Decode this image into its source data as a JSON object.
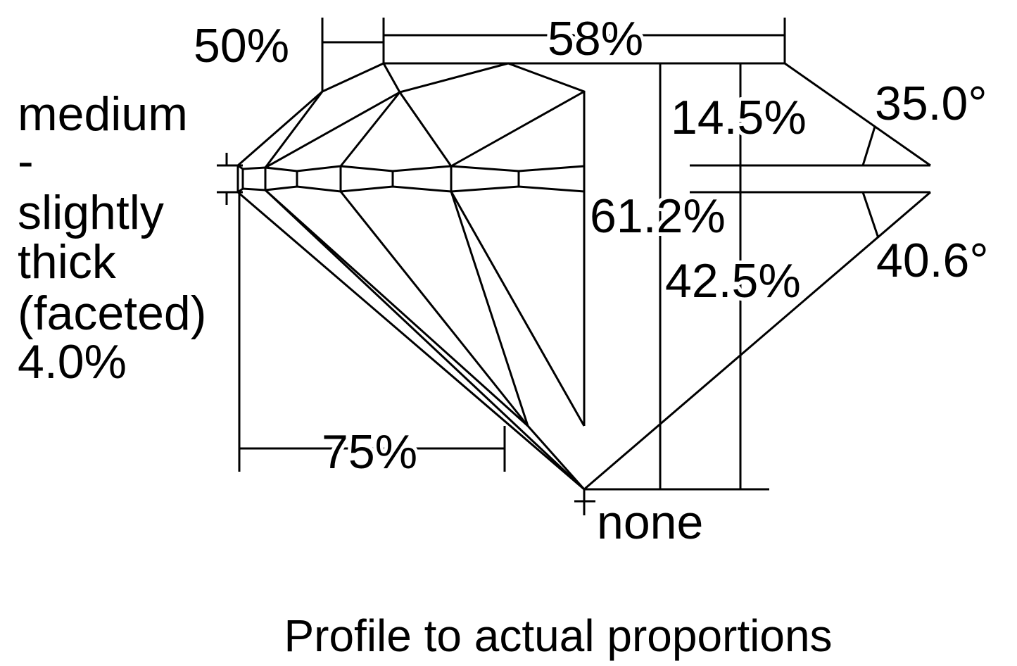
{
  "diagram": {
    "type": "diamond-profile",
    "line_color": "#000000",
    "background": "#ffffff",
    "labels": {
      "lower_half_length": "50%",
      "table": "58%",
      "crown_height": "14.5%",
      "crown_angle": "35.0°",
      "total_depth": "61.2%",
      "pavilion_depth": "42.5%",
      "pavilion_angle": "40.6°",
      "lower_girdle": "75%",
      "culet": "none",
      "girdle_lines": [
        "medium",
        "-",
        "slightly",
        "thick",
        "(faceted)",
        "4.0%"
      ]
    },
    "caption": "Profile to actual proportions"
  }
}
